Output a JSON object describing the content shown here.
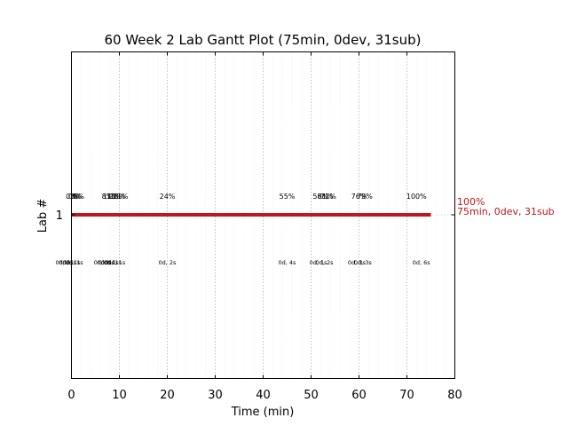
{
  "chart_data": {
    "type": "gantt",
    "title": "60 Week 2 Lab Gantt Plot (75min, 0dev, 31sub)",
    "xlabel": "Time (min)",
    "ylabel": "Lab #",
    "xlim": [
      0,
      80
    ],
    "xticks": [
      "0",
      "10",
      "20",
      "30",
      "40",
      "50",
      "60",
      "70",
      "80"
    ],
    "yticks": [
      "1"
    ],
    "grid": "vertical dotted",
    "bar": {
      "lab": "1",
      "start": 0,
      "end": 75,
      "color": "#c0161c"
    },
    "end_labels": [
      "100%",
      "75min, 0dev, 31sub"
    ],
    "end_label_color": "#c0161c",
    "progress_labels": [
      {
        "x": 0.0,
        "text": "0%"
      },
      {
        "x": 0.5,
        "text": "0%"
      },
      {
        "x": 1.0,
        "text": "3%"
      },
      {
        "x": 1.5,
        "text": "6%"
      },
      {
        "x": 7.5,
        "text": "8%"
      },
      {
        "x": 8.2,
        "text": "11%"
      },
      {
        "x": 8.9,
        "text": "13%"
      },
      {
        "x": 9.6,
        "text": "18%"
      },
      {
        "x": 10.2,
        "text": "21%"
      },
      {
        "x": 20.0,
        "text": "24%"
      },
      {
        "x": 45.0,
        "text": "55%"
      },
      {
        "x": 52.0,
        "text": "58%"
      },
      {
        "x": 53.0,
        "text": "61%"
      },
      {
        "x": 53.6,
        "text": "71%"
      },
      {
        "x": 60.0,
        "text": "76%"
      },
      {
        "x": 61.2,
        "text": "79%"
      },
      {
        "x": 72.0,
        "text": "100%"
      }
    ],
    "duration_labels": [
      {
        "x": -1.5,
        "text": "0d, 0s"
      },
      {
        "x": -0.8,
        "text": "0d, 1s"
      },
      {
        "x": 0.0,
        "text": "0d, 1s"
      },
      {
        "x": 0.6,
        "text": "0d, 1s"
      },
      {
        "x": 6.5,
        "text": "0d, 0s"
      },
      {
        "x": 7.2,
        "text": "0d, 1s"
      },
      {
        "x": 8.0,
        "text": "0d, 1s"
      },
      {
        "x": 8.6,
        "text": "0d, 1s"
      },
      {
        "x": 9.4,
        "text": "0d, 1s"
      },
      {
        "x": 20.0,
        "text": "0d, 2s"
      },
      {
        "x": 45.0,
        "text": "0d, 4s"
      },
      {
        "x": 51.5,
        "text": "0d, 1s"
      },
      {
        "x": 52.8,
        "text": "0d, 2s"
      },
      {
        "x": 59.5,
        "text": "0d, 3s"
      },
      {
        "x": 60.8,
        "text": "0d, 3s"
      },
      {
        "x": 73.0,
        "text": "0d, 6s"
      }
    ]
  }
}
